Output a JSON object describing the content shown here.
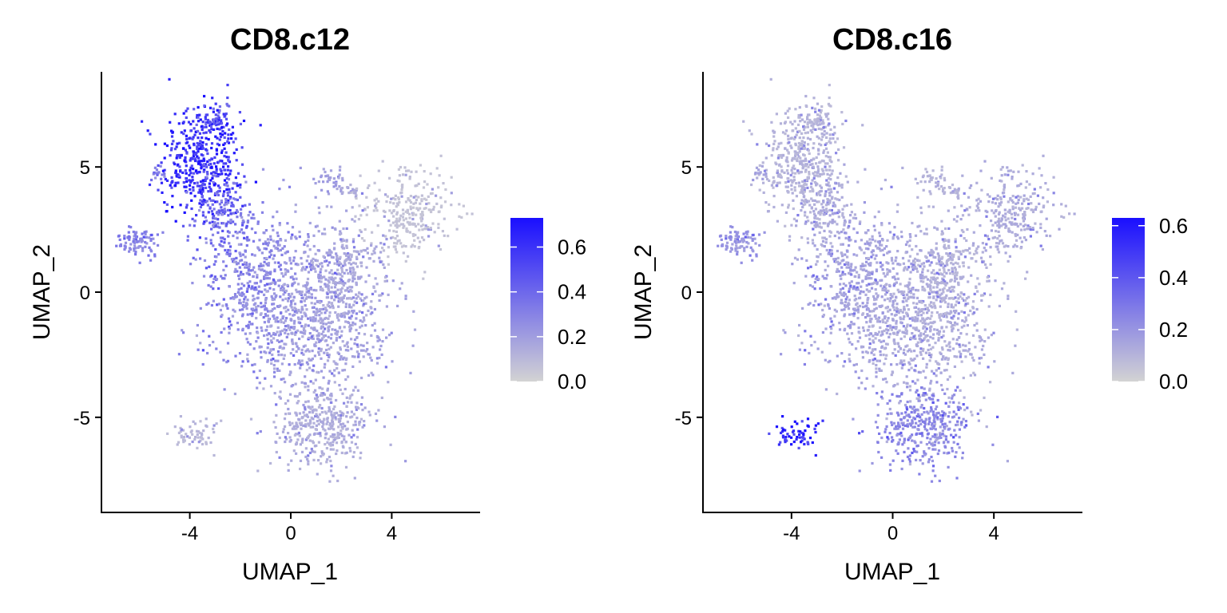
{
  "figure": {
    "colors": {
      "low": "#d3d3d3",
      "high": "#1a0fff",
      "axis": "#000000"
    }
  },
  "chart_data": [
    {
      "type": "scatter",
      "title": "CD8.c12",
      "xlabel": "UMAP_1",
      "ylabel": "UMAP_2",
      "xlim": [
        -7.5,
        7.5
      ],
      "ylim": [
        -8.8,
        8.8
      ],
      "x_ticks": [
        -4,
        0,
        4
      ],
      "x_tick_labels": [
        "-4",
        "0",
        "4"
      ],
      "y_ticks": [
        -5,
        0,
        5
      ],
      "y_tick_labels": [
        "-5",
        "0",
        "5"
      ],
      "grid": false,
      "legend": {
        "type": "colorbar",
        "placement": "right",
        "range": [
          0.0,
          0.73
        ],
        "ticks": [
          0.0,
          0.2,
          0.4,
          0.6
        ],
        "tick_labels": [
          "0.0",
          "0.2",
          "0.4",
          "0.6"
        ]
      },
      "clusters": [
        {
          "cx": -3.6,
          "cy": 5.2,
          "sx": 0.8,
          "sy": 1.1,
          "n": 420,
          "level": 0.62
        },
        {
          "cx": -3.0,
          "cy": 6.8,
          "sx": 0.35,
          "sy": 0.45,
          "n": 60,
          "level": 0.5
        },
        {
          "cx": -2.6,
          "cy": 3.1,
          "sx": 0.6,
          "sy": 0.9,
          "n": 160,
          "level": 0.4
        },
        {
          "cx": -6.1,
          "cy": 2.0,
          "sx": 0.5,
          "sy": 0.3,
          "n": 90,
          "level": 0.3
        },
        {
          "cx": -5.2,
          "cy": 4.7,
          "sx": 0.15,
          "sy": 0.2,
          "n": 15,
          "level": 0.3
        },
        {
          "cx": 1.7,
          "cy": 4.5,
          "sx": 0.35,
          "sy": 0.3,
          "n": 40,
          "level": 0.2
        },
        {
          "cx": 2.4,
          "cy": 4.0,
          "sx": 0.2,
          "sy": 0.2,
          "n": 20,
          "level": 0.15
        },
        {
          "cx": 4.6,
          "cy": 3.2,
          "sx": 0.9,
          "sy": 0.9,
          "n": 280,
          "level": 0.06
        },
        {
          "cx": -1.2,
          "cy": 0.3,
          "sx": 1.2,
          "sy": 1.6,
          "n": 520,
          "level": 0.28
        },
        {
          "cx": 1.2,
          "cy": -1.2,
          "sx": 1.4,
          "sy": 1.8,
          "n": 800,
          "level": 0.18
        },
        {
          "cx": 2.3,
          "cy": 0.7,
          "sx": 0.7,
          "sy": 0.9,
          "n": 200,
          "level": 0.15
        },
        {
          "cx": 1.2,
          "cy": -5.3,
          "sx": 0.9,
          "sy": 0.9,
          "n": 340,
          "level": 0.14
        },
        {
          "cx": -3.8,
          "cy": -5.7,
          "sx": 0.4,
          "sy": 0.3,
          "n": 60,
          "level": 0.1
        }
      ]
    },
    {
      "type": "scatter",
      "title": "CD8.c16",
      "xlabel": "UMAP_1",
      "ylabel": "UMAP_2",
      "xlim": [
        -7.5,
        7.5
      ],
      "ylim": [
        -8.8,
        8.8
      ],
      "x_ticks": [
        -4,
        0,
        4
      ],
      "x_tick_labels": [
        "-4",
        "0",
        "4"
      ],
      "y_ticks": [
        -5,
        0,
        5
      ],
      "y_tick_labels": [
        "-5",
        "0",
        "5"
      ],
      "grid": false,
      "legend": {
        "type": "colorbar",
        "placement": "right",
        "range": [
          0.0,
          0.63
        ],
        "ticks": [
          0.0,
          0.2,
          0.4,
          0.6
        ],
        "tick_labels": [
          "0.0",
          "0.2",
          "0.4",
          "0.6"
        ]
      },
      "clusters": [
        {
          "cx": -3.6,
          "cy": 5.2,
          "sx": 0.8,
          "sy": 1.1,
          "n": 420,
          "level": 0.1
        },
        {
          "cx": -3.0,
          "cy": 6.8,
          "sx": 0.35,
          "sy": 0.45,
          "n": 60,
          "level": 0.1
        },
        {
          "cx": -2.6,
          "cy": 3.1,
          "sx": 0.6,
          "sy": 0.9,
          "n": 160,
          "level": 0.12
        },
        {
          "cx": -6.1,
          "cy": 2.0,
          "sx": 0.5,
          "sy": 0.3,
          "n": 90,
          "level": 0.2
        },
        {
          "cx": -5.2,
          "cy": 4.7,
          "sx": 0.15,
          "sy": 0.2,
          "n": 15,
          "level": 0.15
        },
        {
          "cx": 1.7,
          "cy": 4.5,
          "sx": 0.35,
          "sy": 0.3,
          "n": 40,
          "level": 0.1
        },
        {
          "cx": 2.4,
          "cy": 4.0,
          "sx": 0.2,
          "sy": 0.2,
          "n": 20,
          "level": 0.1
        },
        {
          "cx": 4.6,
          "cy": 3.2,
          "sx": 0.9,
          "sy": 0.9,
          "n": 280,
          "level": 0.12
        },
        {
          "cx": -1.2,
          "cy": 0.3,
          "sx": 1.2,
          "sy": 1.6,
          "n": 520,
          "level": 0.16
        },
        {
          "cx": 1.2,
          "cy": -1.2,
          "sx": 1.4,
          "sy": 1.8,
          "n": 800,
          "level": 0.12
        },
        {
          "cx": 2.3,
          "cy": 0.7,
          "sx": 0.7,
          "sy": 0.9,
          "n": 200,
          "level": 0.1
        },
        {
          "cx": 1.2,
          "cy": -5.3,
          "sx": 0.9,
          "sy": 0.9,
          "n": 340,
          "level": 0.24
        },
        {
          "cx": -3.8,
          "cy": -5.7,
          "sx": 0.4,
          "sy": 0.3,
          "n": 60,
          "level": 0.55
        }
      ]
    }
  ]
}
